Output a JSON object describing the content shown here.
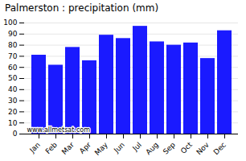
{
  "chart_data": {
    "type": "bar",
    "title": "Palmerston : precipitation (mm)",
    "categories": [
      "Jan",
      "Feb",
      "Mar",
      "Apr",
      "May",
      "Jun",
      "Jul",
      "Aug",
      "Sep",
      "Oct",
      "Nov",
      "Dec"
    ],
    "values": [
      71,
      62,
      78,
      66,
      89,
      86,
      97,
      83,
      80,
      82,
      68,
      93
    ],
    "color": "#1a1aff",
    "ylim": [
      0,
      100
    ],
    "yticks": [
      0,
      10,
      20,
      30,
      40,
      50,
      60,
      70,
      80,
      90,
      100
    ],
    "grid": true,
    "annotations": [
      "www.allmetsat.com"
    ]
  }
}
